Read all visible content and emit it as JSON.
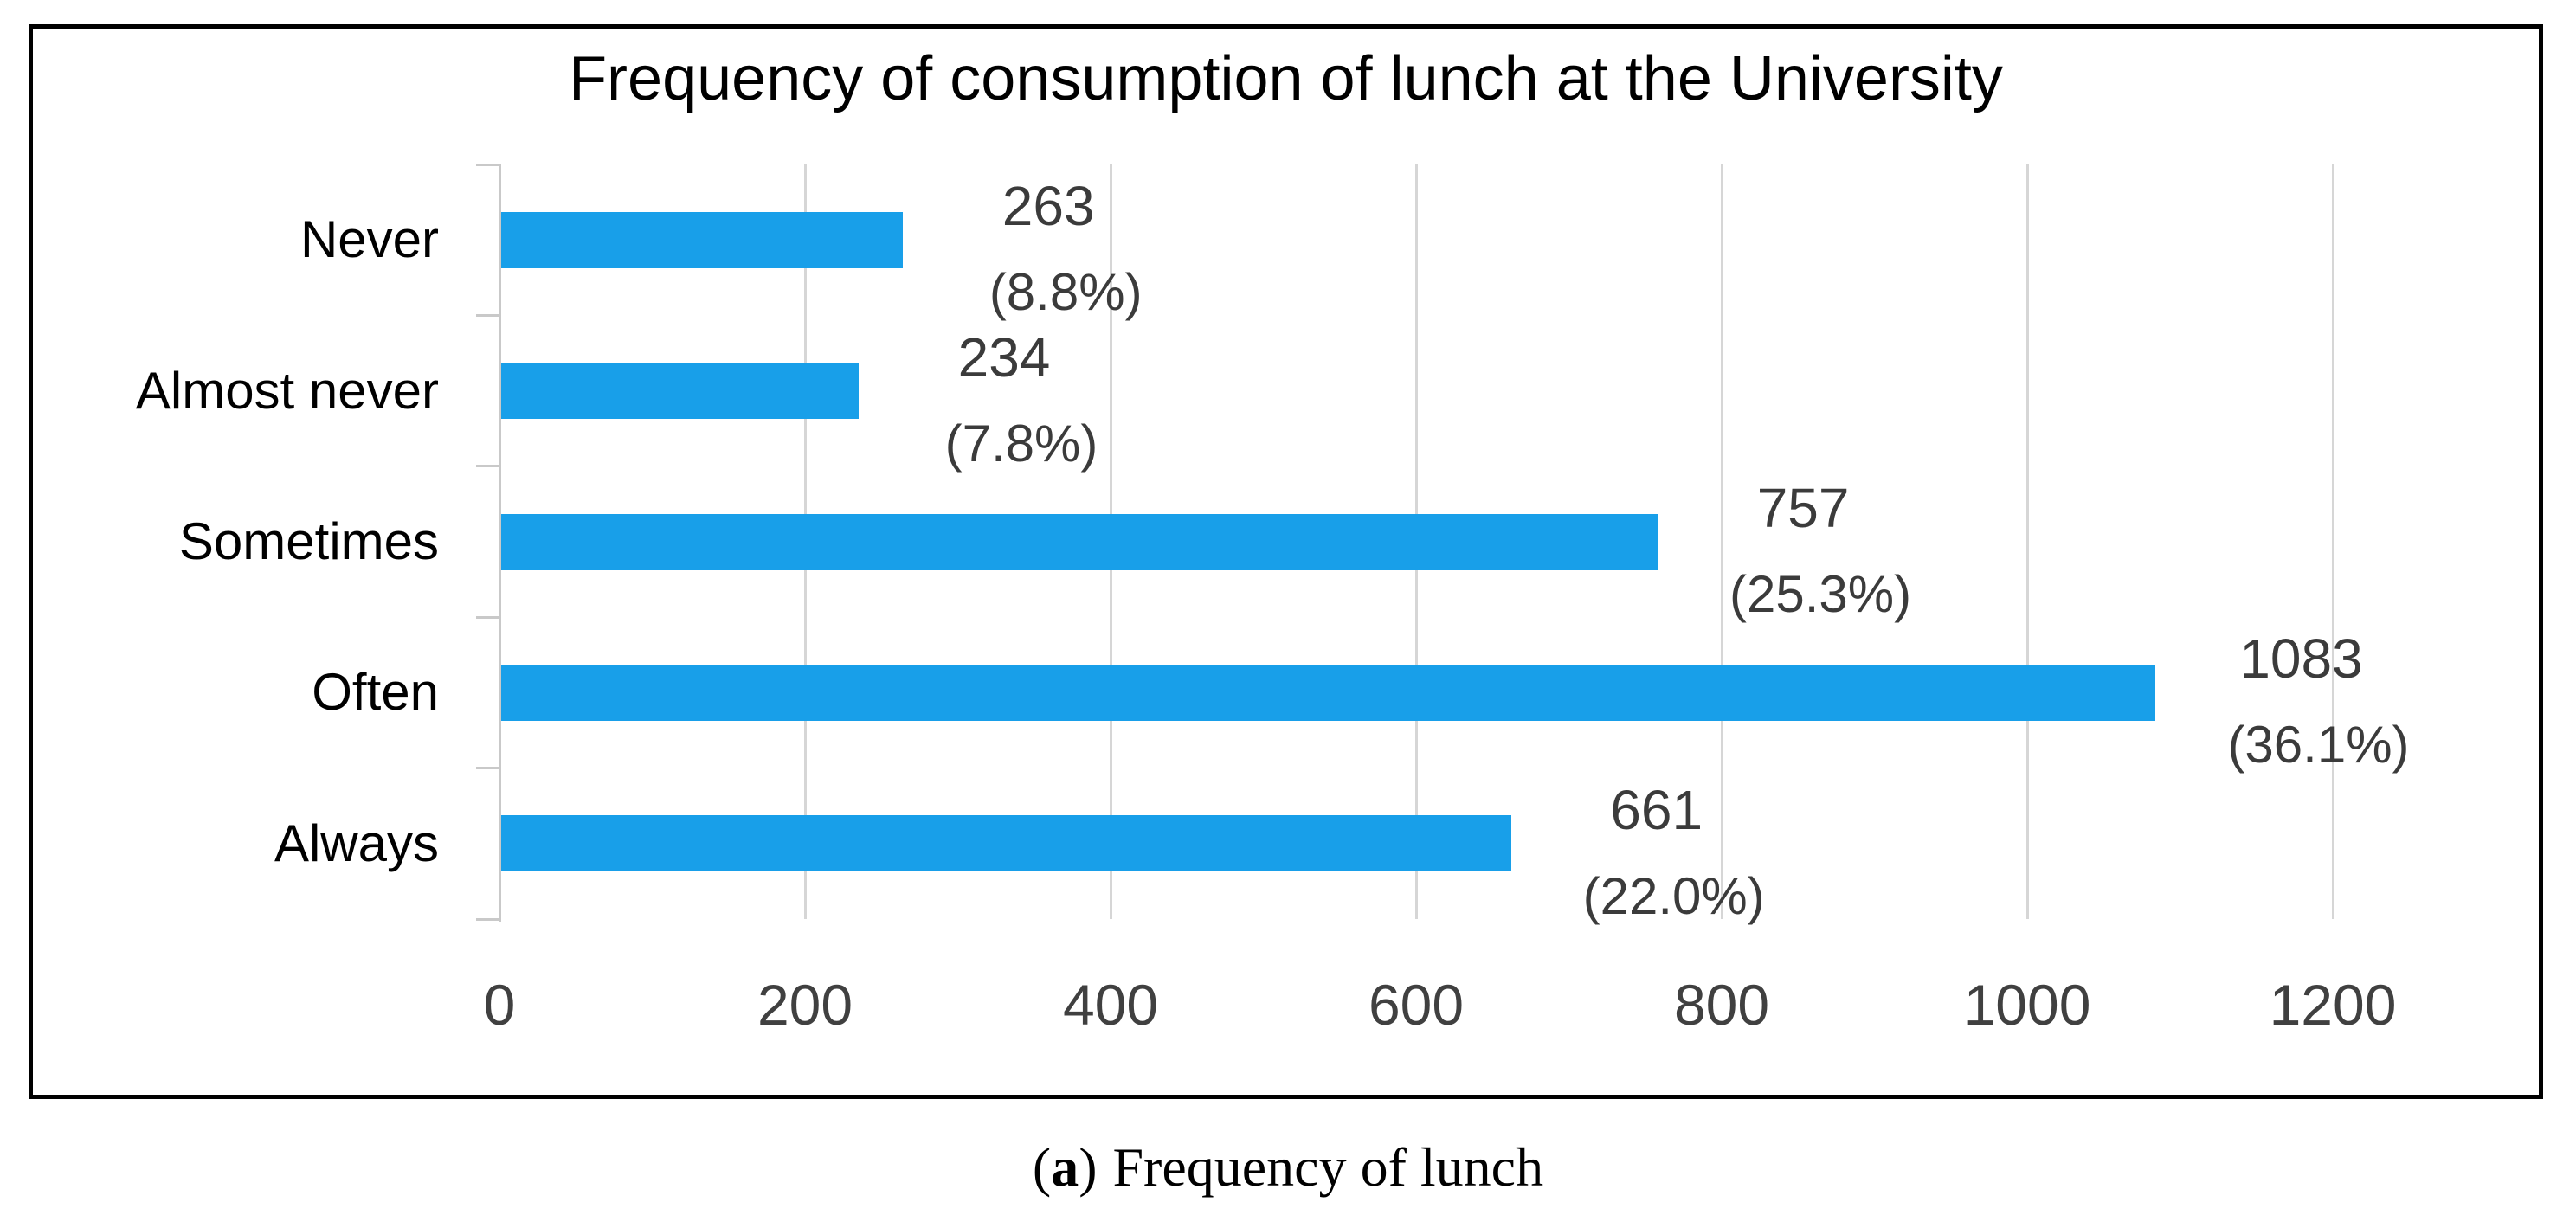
{
  "figure": {
    "caption_open": "(",
    "caption_label": "a",
    "caption_close": ")",
    "caption_text": "Frequency of lunch"
  },
  "chart_data": {
    "type": "bar",
    "orientation": "horizontal",
    "title": "Frequency of consumption of lunch at the University",
    "categories": [
      "Never",
      "Almost never",
      "Sometimes",
      "Often",
      "Always"
    ],
    "values": [
      263,
      234,
      757,
      1083,
      661
    ],
    "percentages": [
      8.8,
      7.8,
      25.3,
      36.1,
      22.0
    ],
    "percent_labels": [
      "(8.8%)",
      "(7.8%)",
      "(25.3%)",
      "(36.1%)",
      "(22.0%)"
    ],
    "x_axis": {
      "min": 0,
      "max": 1200,
      "tick_interval": 200,
      "ticks": [
        0,
        200,
        400,
        600,
        800,
        1000,
        1200
      ]
    },
    "grid": true,
    "legend": false,
    "data_labels": "value and percent beside bar end",
    "bar_color": "#189FE9",
    "gridline_color": "#D6D6D6",
    "axis_color": "#C9C9C9",
    "tick_label_color": "#404040",
    "value_label_color": "#3B3B3B",
    "category_label_color": "#000000"
  }
}
